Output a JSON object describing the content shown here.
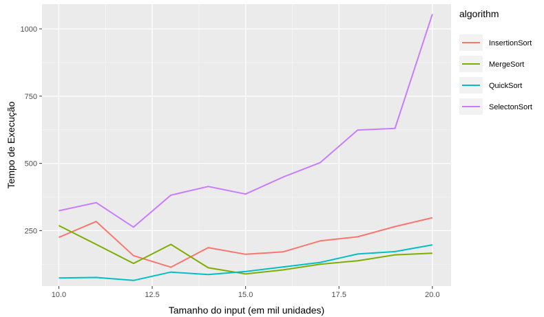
{
  "chart_data": {
    "type": "line",
    "xlabel": "Tamanho do input (em mil unidades)",
    "ylabel": "Tempo de Execução",
    "xlim": [
      9.55,
      20.5
    ],
    "ylim": [
      44,
      1092
    ],
    "x_ticks": [
      10.0,
      12.5,
      15.0,
      17.5,
      20.0
    ],
    "x_tick_labels": [
      "10.0",
      "12.5",
      "15.0",
      "17.5",
      "20.0"
    ],
    "y_ticks": [
      250,
      500,
      750,
      1000
    ],
    "y_tick_labels": [
      "250",
      "500",
      "750",
      "1000"
    ],
    "grid": true,
    "legend": {
      "title": "algorithm",
      "placement": "right"
    },
    "x": [
      10,
      11,
      12,
      13,
      14,
      15,
      16,
      17,
      18,
      19,
      20
    ],
    "series": [
      {
        "name": "InsertionSort",
        "color": "#F8766D",
        "values": [
          225,
          284,
          157,
          114,
          187,
          162,
          171,
          212,
          227,
          265,
          298
        ]
      },
      {
        "name": "MergeSort",
        "color": "#7CAE00",
        "values": [
          269,
          199,
          128,
          199,
          112,
          89,
          104,
          125,
          138,
          160,
          166
        ]
      },
      {
        "name": "QuickSort",
        "color": "#00BFC4",
        "values": [
          74,
          76,
          65,
          96,
          87,
          98,
          115,
          132,
          163,
          172,
          197
        ]
      },
      {
        "name": "SelectonSort",
        "color": "#C77CFF",
        "values": [
          324,
          354,
          263,
          382,
          414,
          386,
          449,
          503,
          624,
          630,
          1055
        ]
      }
    ]
  }
}
